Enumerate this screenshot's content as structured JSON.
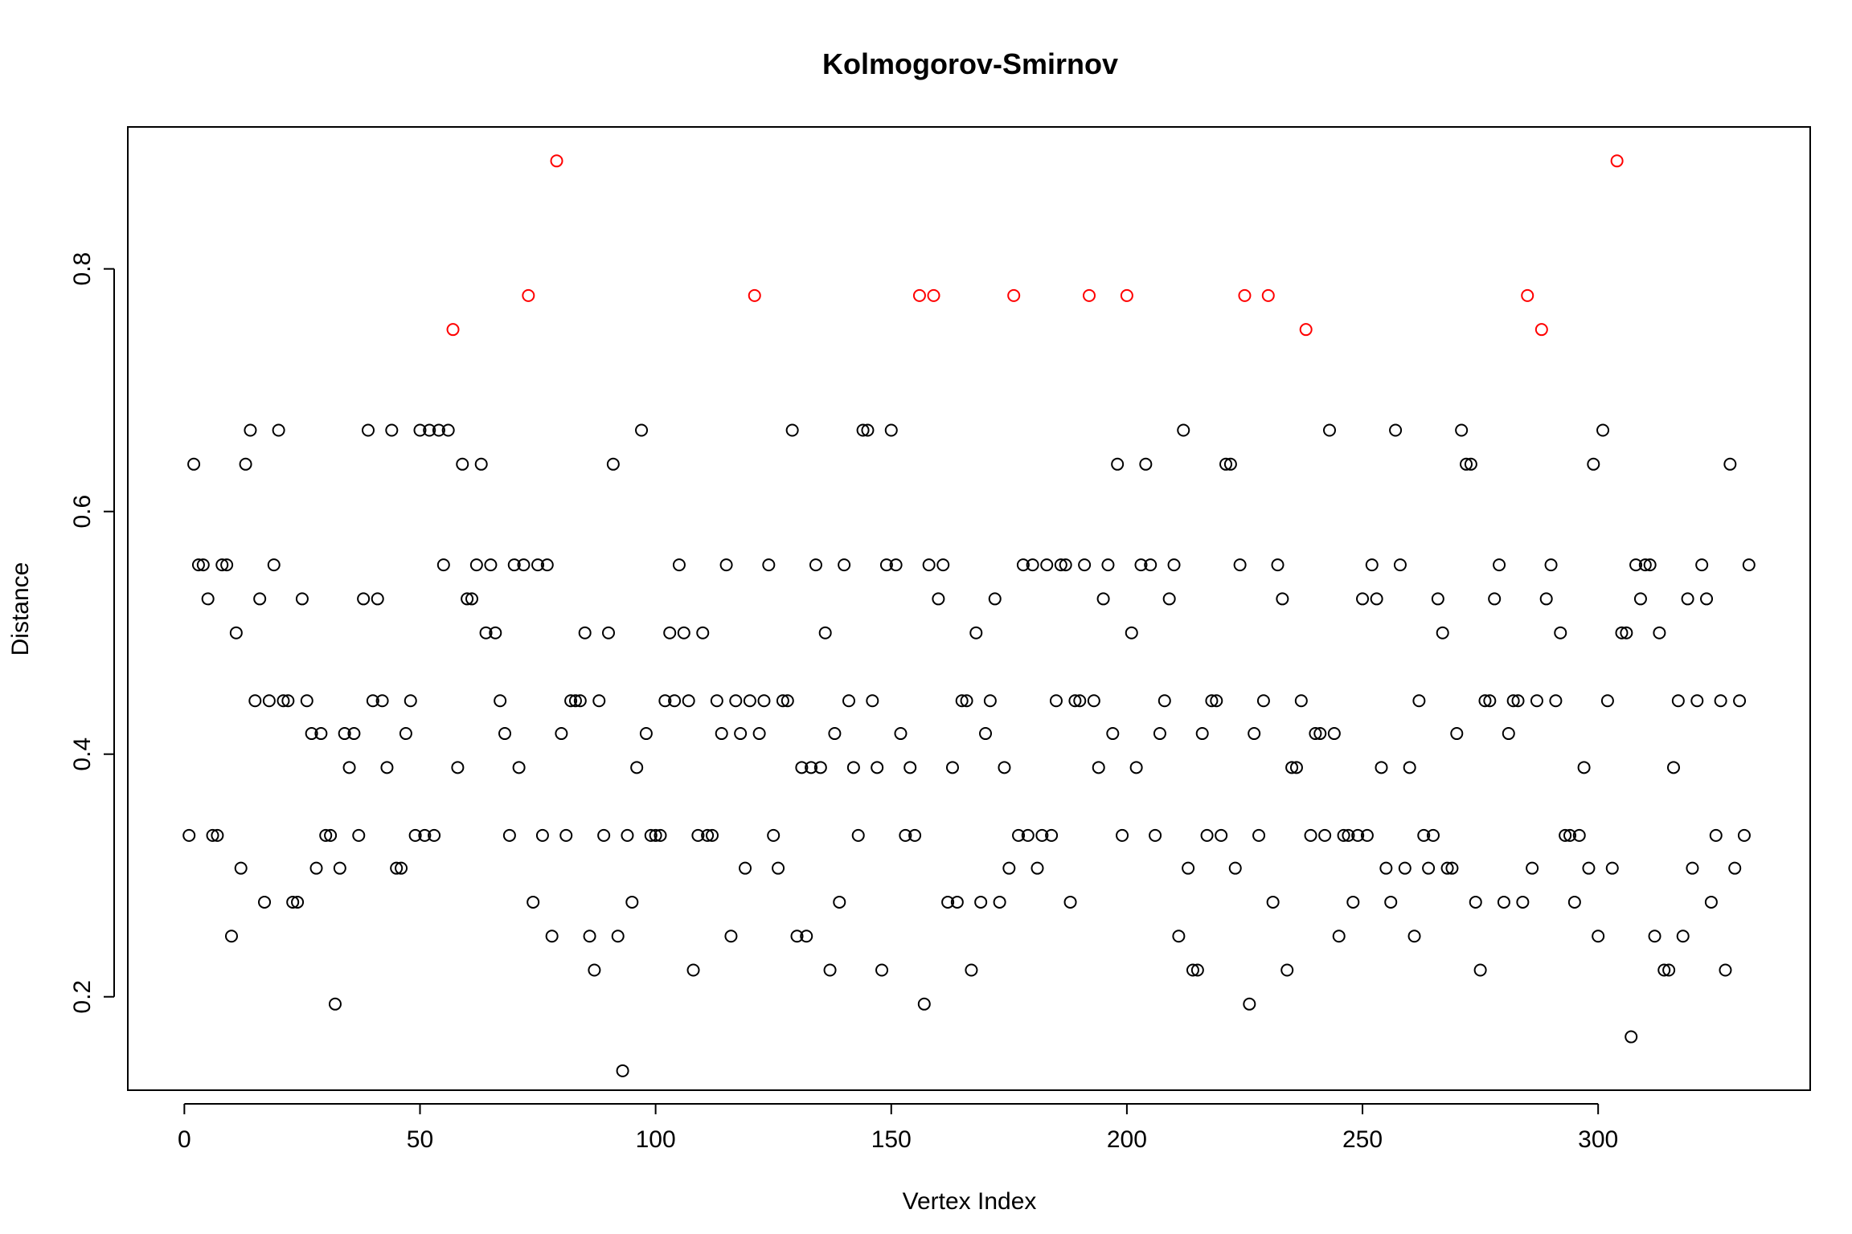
{
  "chart_data": {
    "type": "scatter",
    "title": "Kolmogorov-Smirnov",
    "xlabel": "Vertex Index",
    "ylabel": "Distance",
    "xlim": [
      -12,
      345
    ],
    "ylim": [
      0.123,
      0.917
    ],
    "xticks": [
      0,
      50,
      100,
      150,
      200,
      250,
      300
    ],
    "yticks": [
      0.2,
      0.4,
      0.6,
      0.8
    ],
    "xtick_labels": [
      "0",
      "50",
      "100",
      "150",
      "200",
      "250",
      "300"
    ],
    "ytick_labels": [
      "0.2",
      "0.4",
      "0.6",
      "0.8"
    ],
    "grid": false,
    "legend": "none",
    "colors": {
      "normal": "#000000",
      "highlight": "#ff0000"
    },
    "series": [
      {
        "values": [
          0.333,
          0.639,
          0.556,
          0.556,
          0.528,
          0.333,
          0.333,
          0.556,
          0.556,
          0.25,
          0.5,
          0.306,
          0.639,
          0.667,
          0.444,
          0.528,
          0.278,
          0.444,
          0.556,
          0.667,
          0.444,
          0.444,
          0.278,
          0.278,
          0.528,
          0.444,
          0.417,
          0.306,
          0.417,
          0.333,
          0.333,
          0.194,
          0.306,
          0.417,
          0.389,
          0.417,
          0.333,
          0.528,
          0.667,
          0.444,
          0.528,
          0.444,
          0.389,
          0.667,
          0.306,
          0.306,
          0.417,
          0.444,
          0.333,
          0.667,
          0.333,
          0.667,
          0.333,
          0.667,
          0.556,
          0.667,
          0.75,
          0.389,
          0.639,
          0.528,
          0.528,
          0.556,
          0.639,
          0.5,
          0.556,
          0.5,
          0.444,
          0.417,
          0.333,
          0.556,
          0.389,
          0.556,
          0.778,
          0.278,
          0.556,
          0.333,
          0.556,
          0.25,
          0.889,
          0.417,
          0.333,
          0.444,
          0.444,
          0.444,
          0.5,
          0.25,
          0.222,
          0.444,
          0.333,
          0.5,
          0.639,
          0.25,
          0.139,
          0.333,
          0.278,
          0.389,
          0.667,
          0.417,
          0.333,
          0.333,
          0.333,
          0.444,
          0.5,
          0.444,
          0.556,
          0.5,
          0.444,
          0.222,
          0.333,
          0.5,
          0.333,
          0.333,
          0.444,
          0.417,
          0.556,
          0.25,
          0.444,
          0.417,
          0.306,
          0.444,
          0.778,
          0.417,
          0.444,
          0.556,
          0.333,
          0.306,
          0.444,
          0.444,
          0.667,
          0.25,
          0.389,
          0.25,
          0.389,
          0.556,
          0.389,
          0.5,
          0.222,
          0.417,
          0.278,
          0.556,
          0.444,
          0.389,
          0.333,
          0.667,
          0.667,
          0.444,
          0.389,
          0.222,
          0.556,
          0.667,
          0.556,
          0.417,
          0.333,
          0.389,
          0.333,
          0.778,
          0.194,
          0.556,
          0.778,
          0.528,
          0.556,
          0.278,
          0.389,
          0.278,
          0.444,
          0.444,
          0.222,
          0.5,
          0.278,
          0.417,
          0.444,
          0.528,
          0.278,
          0.389,
          0.306,
          0.778,
          0.333,
          0.556,
          0.333,
          0.556,
          0.306,
          0.333,
          0.556,
          0.333,
          0.444,
          0.556,
          0.556,
          0.278,
          0.444,
          0.444,
          0.556,
          0.778,
          0.444,
          0.389,
          0.528,
          0.556,
          0.417,
          0.639,
          0.333,
          0.778,
          0.5,
          0.389,
          0.556,
          0.639,
          0.556,
          0.333,
          0.417,
          0.444,
          0.528,
          0.556,
          0.25,
          0.667,
          0.306,
          0.222,
          0.222,
          0.417,
          0.333,
          0.444,
          0.444,
          0.333,
          0.639,
          0.639,
          0.306,
          0.556,
          0.778,
          0.194,
          0.417,
          0.333,
          0.444,
          0.778,
          0.278,
          0.556,
          0.528,
          0.222,
          0.389,
          0.389,
          0.444,
          0.75,
          0.333,
          0.417,
          0.417,
          0.333,
          0.667,
          0.417,
          0.25,
          0.333,
          0.333,
          0.278,
          0.333,
          0.528,
          0.333,
          0.556,
          0.528,
          0.389,
          0.306,
          0.278,
          0.667,
          0.556,
          0.306,
          0.389,
          0.25,
          0.444,
          0.333,
          0.306,
          0.333,
          0.528,
          0.5,
          0.306,
          0.306,
          0.417,
          0.667,
          0.639,
          0.639,
          0.278,
          0.222,
          0.444,
          0.444,
          0.528,
          0.556,
          0.278,
          0.417,
          0.444,
          0.444,
          0.278,
          0.778,
          0.306,
          0.444,
          0.75,
          0.528,
          0.556,
          0.444,
          0.5,
          0.333,
          0.333,
          0.278,
          0.333,
          0.389,
          0.306,
          0.639,
          0.25,
          0.667,
          0.444,
          0.306,
          0.889,
          0.5,
          0.5,
          0.167,
          0.556,
          0.528,
          0.556,
          0.556,
          0.25,
          0.5,
          0.222,
          0.222,
          0.389,
          0.444,
          0.25,
          0.528,
          0.306,
          0.444,
          0.556,
          0.528,
          0.278,
          0.333,
          0.444,
          0.222,
          0.639,
          0.306,
          0.444,
          0.333,
          0.556
        ],
        "highlight_x": [
          57,
          73,
          79,
          121,
          156,
          159,
          176,
          192,
          200,
          225,
          230,
          238,
          285,
          288,
          304
        ]
      }
    ]
  }
}
